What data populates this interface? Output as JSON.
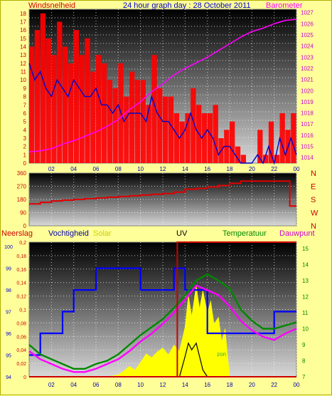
{
  "header": {
    "title": "24 hour graph day : 28 October 2011",
    "left_label": "Windsnelheid",
    "right_label": "Barometer"
  },
  "colors": {
    "page_bg": "#ffff99",
    "plot_grad_top": "#000000",
    "plot_grad_bottom": "#d8d8d8",
    "wind_gust": "#ff0000",
    "wind_avg": "#0000cc",
    "barometer": "#ff00ff",
    "direction": "#dd0000",
    "rain_axis": "#cc0000",
    "humidity": "#0000ff",
    "solar": "#ffff00",
    "uv": "#000000",
    "temperature": "#008800",
    "dewpoint": "#ff00ff"
  },
  "chart_data": [
    {
      "type": "line",
      "title": "24 hour graph day : 28 October 2011",
      "x_ticks": [
        "02",
        "04",
        "06",
        "08",
        "10",
        "12",
        "14",
        "16",
        "18",
        "20",
        "22",
        "00"
      ],
      "y_left_label": "Windsnelheid",
      "y_left_ticks": [
        "0",
        "1",
        "2",
        "3",
        "4",
        "5",
        "6",
        "7",
        "8",
        "9",
        "10",
        "11",
        "12",
        "13",
        "14",
        "15",
        "16",
        "17",
        "18"
      ],
      "y_right_label": "Barometer",
      "y_right_ticks": [
        "1014",
        "1015",
        "1016",
        "1017",
        "1018",
        "1019",
        "1020",
        "1021",
        "1022",
        "1023",
        "1024",
        "1025",
        "1026",
        "1027"
      ],
      "ylim_left": [
        0,
        18.5
      ],
      "ylim_right": [
        1013.5,
        1027.3
      ],
      "series": [
        {
          "name": "Windsnelheid",
          "kind": "gust",
          "x": [
            0,
            0.5,
            1,
            1.5,
            2,
            2.5,
            3,
            3.5,
            4,
            4.5,
            5,
            5.5,
            6,
            6.5,
            7,
            7.5,
            8,
            8.5,
            9,
            9.5,
            10,
            10.5,
            11,
            11.5,
            12,
            12.5,
            13,
            13.5,
            14,
            14.5,
            15,
            15.5,
            16,
            16.5,
            17,
            17.5,
            18,
            18.5,
            19,
            19.5,
            20,
            20.5,
            21,
            21.5,
            22,
            22.5,
            23,
            23.5,
            24
          ],
          "values": [
            14,
            16,
            18,
            15,
            13,
            17,
            14,
            12,
            16,
            13,
            15,
            11,
            13,
            12,
            10,
            9,
            12,
            8,
            11,
            10,
            10,
            7,
            13,
            9,
            8,
            8,
            6,
            5,
            6,
            9,
            7,
            6,
            6,
            7,
            3,
            4,
            5,
            2,
            1,
            0,
            0,
            4,
            1,
            5,
            1,
            6,
            4,
            6,
            3
          ]
        },
        {
          "name": "Windsnelheid (avg)",
          "kind": "avg",
          "x": [
            0,
            0.5,
            1,
            1.5,
            2,
            2.5,
            3,
            3.5,
            4,
            4.5,
            5,
            5.5,
            6,
            6.5,
            7,
            7.5,
            8,
            8.5,
            9,
            9.5,
            10,
            10.5,
            11,
            11.5,
            12,
            12.5,
            13,
            13.5,
            14,
            14.5,
            15,
            15.5,
            16,
            16.5,
            17,
            17.5,
            18,
            18.5,
            19,
            19.5,
            20,
            20.5,
            21,
            21.5,
            22,
            22.5,
            23,
            23.5,
            24
          ],
          "values": [
            12,
            10,
            11,
            9,
            8,
            10,
            9,
            8,
            10,
            9,
            8,
            8,
            9,
            7,
            7,
            6,
            7,
            5,
            6,
            6,
            6,
            5,
            8,
            6,
            5,
            5,
            4,
            3,
            4,
            6,
            4,
            3,
            4,
            3,
            1,
            2,
            2,
            1,
            0,
            0,
            0,
            1,
            0,
            2,
            0,
            3,
            1,
            3,
            1
          ]
        },
        {
          "name": "Barometer",
          "x": [
            0,
            1,
            2,
            3,
            4,
            5,
            6,
            7,
            8,
            9,
            10,
            11,
            12,
            13,
            14,
            15,
            16,
            17,
            18,
            19,
            20,
            21,
            22,
            23,
            24
          ],
          "values": [
            1014.5,
            1014.6,
            1014.8,
            1015.2,
            1015.5,
            1015.9,
            1016.3,
            1016.8,
            1017.4,
            1018.3,
            1019.0,
            1019.9,
            1020.6,
            1021.4,
            1022.0,
            1022.5,
            1023.0,
            1023.6,
            1024.2,
            1024.8,
            1025.3,
            1025.6,
            1026.0,
            1026.3,
            1026.4
          ]
        }
      ]
    },
    {
      "type": "line",
      "x_ticks": [],
      "y_left_ticks": [
        "0",
        "90",
        "180",
        "270",
        "360"
      ],
      "y_right_ticks": [
        "N",
        "W",
        "S",
        "E",
        "N"
      ],
      "ylim_left": [
        0,
        360
      ],
      "series": [
        {
          "name": "direction",
          "x": [
            0,
            1,
            2,
            3,
            4,
            5,
            6,
            7,
            8,
            9,
            10,
            11,
            12,
            13,
            14,
            15,
            16,
            17,
            18,
            19,
            20,
            21,
            22,
            23,
            23.4,
            24
          ],
          "values": [
            150,
            160,
            170,
            175,
            180,
            185,
            190,
            195,
            200,
            205,
            210,
            215,
            220,
            230,
            250,
            255,
            265,
            275,
            290,
            305,
            305,
            305,
            305,
            305,
            135,
            135
          ]
        }
      ]
    },
    {
      "type": "line",
      "labels": [
        "Neerslag",
        "Vochtigheid",
        "Solar",
        "UV",
        "Temperatuur",
        "Dauwpunt"
      ],
      "x_ticks": [
        "02",
        "04",
        "06",
        "08",
        "10",
        "12",
        "14",
        "16",
        "18",
        "20",
        "22",
        "00"
      ],
      "y_rain_ticks": [
        "0",
        "0,02",
        "0,04",
        "0,06",
        "0,08",
        "0,1",
        "0,12",
        "0,14",
        "0,16",
        "0,18",
        "0,2"
      ],
      "y_humidity_ticks": [
        "94",
        "95",
        "96",
        "97",
        "98",
        "99",
        "100"
      ],
      "y_temp_ticks": [
        "7",
        "8",
        "9",
        "10",
        "11",
        "12",
        "13",
        "14",
        "15"
      ],
      "ylim_rain": [
        0,
        0.2
      ],
      "ylim_humidity": [
        94,
        100.2
      ],
      "ylim_temp": [
        7,
        15.4
      ],
      "annotation": "zon",
      "series": [
        {
          "name": "Neerslag",
          "x": [
            0,
            13.3,
            13.3,
            24
          ],
          "values": [
            0,
            0,
            0.2,
            0.2
          ]
        },
        {
          "name": "Vochtigheid",
          "x": [
            0,
            1,
            2,
            3,
            4,
            5,
            6,
            7,
            8,
            9,
            10,
            11,
            12,
            13,
            13.8,
            14,
            15,
            16,
            17,
            18,
            19,
            20,
            21,
            22,
            23,
            24
          ],
          "values": [
            95,
            96,
            96,
            97,
            98,
            98,
            99,
            99,
            99,
            99,
            98,
            98,
            98,
            99,
            99,
            98,
            98,
            96,
            96,
            96,
            96,
            96,
            96,
            97,
            97,
            97
          ]
        },
        {
          "name": "Solar",
          "x": [
            6,
            7,
            7.5,
            8,
            8.5,
            9,
            9.5,
            10,
            10.5,
            11,
            11.5,
            12,
            12.5,
            13,
            13.5,
            14,
            14.3,
            14.6,
            15,
            15.3,
            15.6,
            16,
            16.3,
            16.6,
            17,
            17.3,
            17.6,
            18
          ],
          "values": [
            0,
            0,
            1,
            2,
            6,
            11,
            7,
            15,
            24,
            20,
            26,
            30,
            23,
            33,
            27,
            52,
            85,
            63,
            95,
            71,
            90,
            66,
            79,
            55,
            62,
            37,
            50,
            0
          ]
        },
        {
          "name": "UV",
          "x": [
            13.5,
            14,
            14.3,
            14.6,
            15,
            15.3,
            15.6,
            16
          ],
          "values": [
            0,
            0.03,
            0.05,
            0.04,
            0.05,
            0.03,
            0.01,
            0
          ]
        },
        {
          "name": "Temperatuur",
          "x": [
            0,
            1,
            2,
            3,
            4,
            5,
            6,
            7,
            8,
            9,
            10,
            11,
            12,
            13,
            14,
            15,
            16,
            17,
            18,
            19,
            20,
            21,
            22,
            23,
            24
          ],
          "values": [
            9.0,
            8.4,
            8.1,
            7.8,
            7.5,
            7.5,
            7.8,
            8.0,
            8.4,
            9.0,
            9.6,
            10.1,
            10.6,
            11.3,
            12.1,
            13.0,
            13.4,
            13.0,
            12.5,
            11.2,
            10.5,
            10.0,
            10.0,
            10.2,
            10.4
          ]
        },
        {
          "name": "Dauwpunt",
          "x": [
            0,
            1,
            2,
            3,
            4,
            5,
            6,
            7,
            8,
            9,
            10,
            11,
            12,
            13,
            14,
            15,
            16,
            17,
            18,
            19,
            20,
            21,
            22,
            23,
            24
          ],
          "values": [
            8.6,
            8.1,
            7.8,
            7.5,
            7.3,
            7.3,
            7.5,
            7.8,
            8.1,
            8.6,
            9.2,
            9.7,
            10.3,
            11.0,
            11.8,
            12.7,
            12.4,
            12.1,
            11.4,
            10.5,
            9.9,
            9.5,
            9.3,
            9.7,
            10.0
          ]
        }
      ]
    }
  ]
}
